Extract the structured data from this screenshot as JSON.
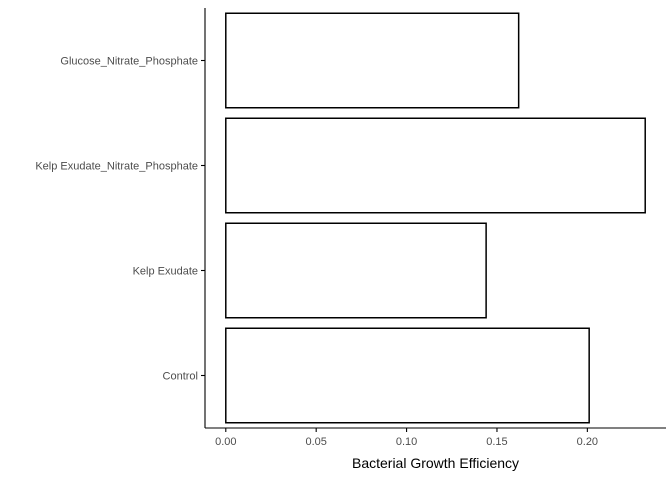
{
  "chart_data": {
    "type": "bar",
    "orientation": "horizontal",
    "title": "",
    "xlabel": "Bacterial Growth Efficiency",
    "ylabel": "",
    "categories": [
      "Control",
      "Kelp Exudate",
      "Kelp Exudate_Nitrate_Phosphate",
      "Glucose_Nitrate_Phosphate"
    ],
    "values": [
      0.201,
      0.144,
      0.232,
      0.162
    ],
    "xlim": [
      -0.0115,
      0.2435
    ],
    "xticks": [
      0.0,
      0.05,
      0.1,
      0.15,
      0.2
    ],
    "xtick_labels": [
      "0.00",
      "0.05",
      "0.10",
      "0.15",
      "0.20"
    ],
    "grid": false,
    "legend": "none",
    "colors": {
      "bar_fill": "#ffffff",
      "bar_stroke": "#000000",
      "axis": "#000000",
      "tick_text": "#4d4d4d"
    }
  }
}
